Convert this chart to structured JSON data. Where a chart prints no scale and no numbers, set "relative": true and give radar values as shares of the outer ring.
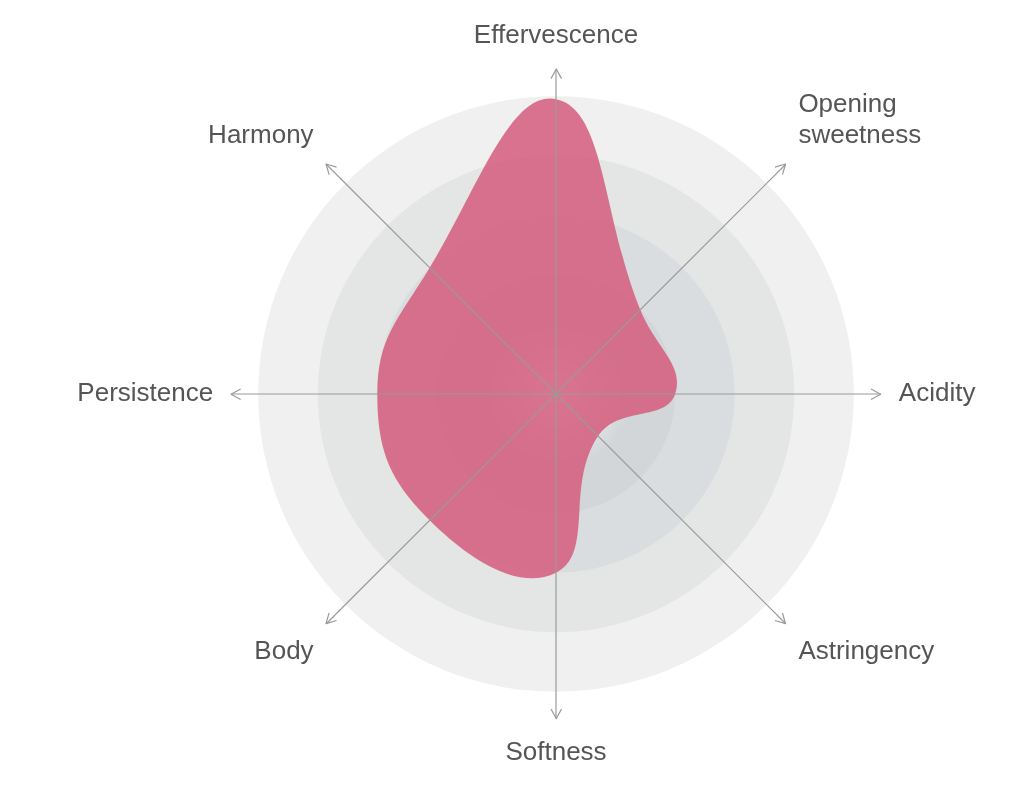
{
  "chart_data": {
    "type": "radar",
    "relative": true,
    "grid": true,
    "categories": [
      "Effervescence",
      "Opening sweetness",
      "Acidity",
      "Astringency",
      "Softness",
      "Body",
      "Persistence",
      "Harmony"
    ],
    "series": [
      {
        "color": "#d4607f",
        "values": [
          0.99,
          0.4,
          0.4,
          0.2,
          0.6,
          0.6,
          0.6,
          0.6
        ]
      }
    ]
  }
}
